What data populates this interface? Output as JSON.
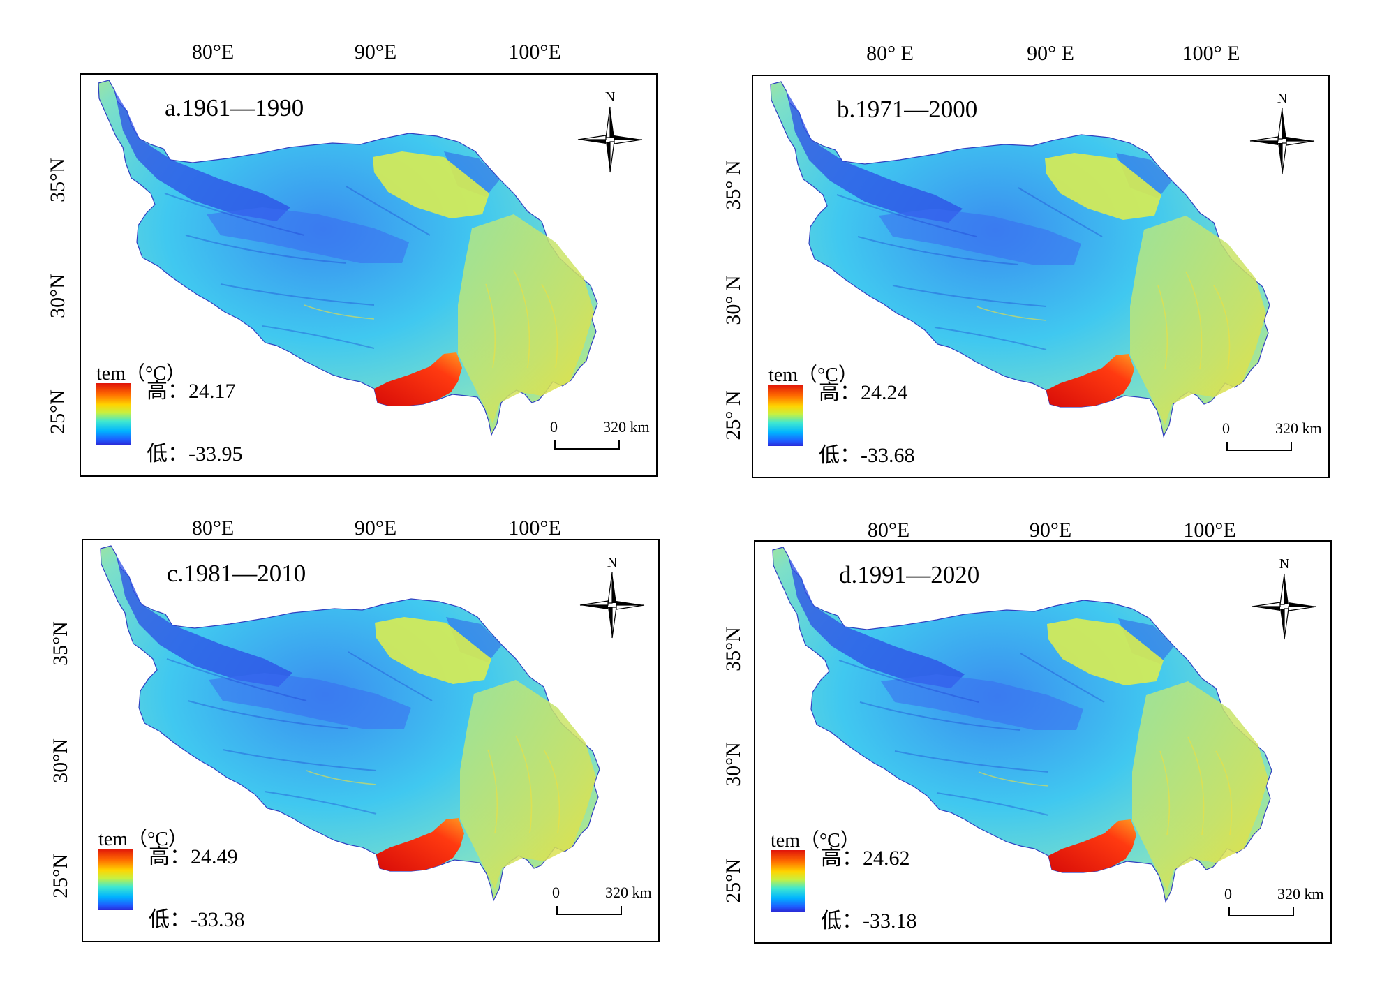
{
  "colors": {
    "ramp_high": "#e0140a",
    "ramp_mid": "#c8f040",
    "ramp_low": "#2a2ad8",
    "frame": "#000000"
  },
  "panels": [
    {
      "title": "a.1961—1990",
      "lon_labels": [
        "80°E",
        "90°E",
        "100°E"
      ],
      "lat_labels": [
        "35°N",
        "30°N",
        "25°N"
      ],
      "legend_title": "tem（°C）",
      "high_label": "高：24.17",
      "low_label": "低：-33.95",
      "scale_zero": "0",
      "scale_dist": "320 km",
      "north_label": "N"
    },
    {
      "title": "b.1971—2000",
      "lon_labels": [
        "80° E",
        "90° E",
        "100° E"
      ],
      "lat_labels": [
        "35° N",
        "30° N",
        "25° N"
      ],
      "legend_title": "tem（°C）",
      "high_label": "高：24.24",
      "low_label": "低：-33.68",
      "scale_zero": "0",
      "scale_dist": "320 km",
      "north_label": "N"
    },
    {
      "title": "c.1981—2010",
      "lon_labels": [
        "80°E",
        "90°E",
        "100°E"
      ],
      "lat_labels": [
        "35°N",
        "30°N",
        "25°N"
      ],
      "legend_title": "tem（°C）",
      "high_label": "高：24.49",
      "low_label": "低：-33.38",
      "scale_zero": "0",
      "scale_dist": "320 km",
      "north_label": "N"
    },
    {
      "title": "d.1991—2020",
      "lon_labels": [
        "80°E",
        "90°E",
        "100°E"
      ],
      "lat_labels": [
        "35°N",
        "30°N",
        "25°N"
      ],
      "legend_title": "tem（°C）",
      "high_label": "高：24.62",
      "low_label": "低：-33.18",
      "scale_zero": "0",
      "scale_dist": "320 km",
      "north_label": "N"
    }
  ]
}
